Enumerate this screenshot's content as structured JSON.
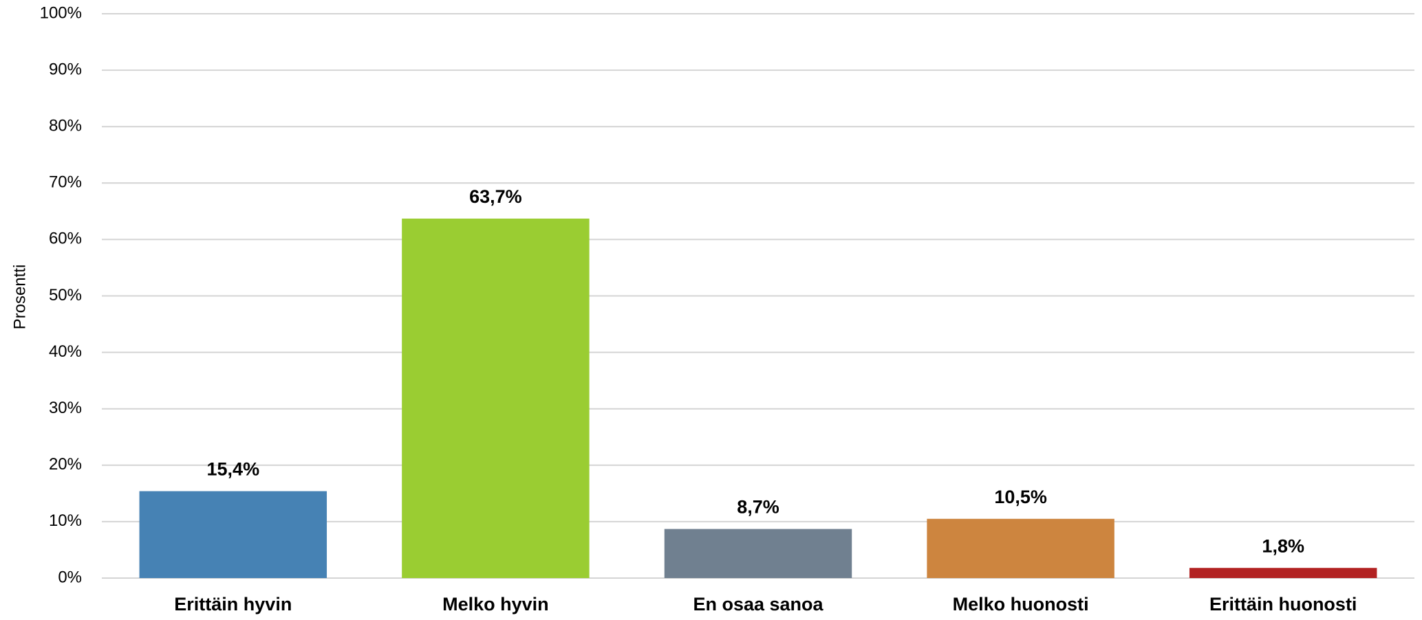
{
  "chart_data": {
    "type": "bar",
    "ylabel": "Prosentti",
    "categories": [
      "Erittäin hyvin",
      "Melko hyvin",
      "En osaa sanoa",
      "Melko huonosti",
      "Erittäin huonosti"
    ],
    "values": [
      15.4,
      63.7,
      8.7,
      10.5,
      1.8
    ],
    "value_labels": [
      "15,4%",
      "63,7%",
      "8,7%",
      "10,5%",
      "1,8%"
    ],
    "colors": [
      "#4682b4",
      "#9acd32",
      "#708090",
      "#cd853f",
      "#b22222"
    ],
    "ylim": [
      0,
      100
    ],
    "yticks": [
      {
        "value": 0,
        "label": "0%"
      },
      {
        "value": 10,
        "label": "10%"
      },
      {
        "value": 20,
        "label": "20%"
      },
      {
        "value": 30,
        "label": "30%"
      },
      {
        "value": 40,
        "label": "40%"
      },
      {
        "value": 50,
        "label": "50%"
      },
      {
        "value": 60,
        "label": "60%"
      },
      {
        "value": 70,
        "label": "70%"
      },
      {
        "value": 80,
        "label": "80%"
      },
      {
        "value": 90,
        "label": "90%"
      },
      {
        "value": 100,
        "label": "100%"
      }
    ],
    "grid": true
  }
}
